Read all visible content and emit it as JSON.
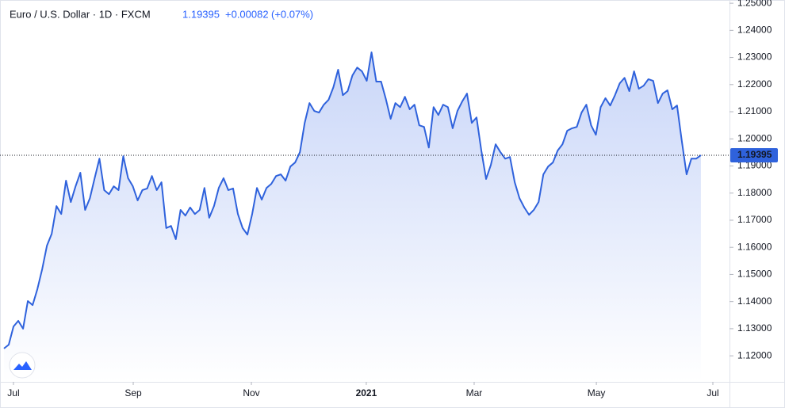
{
  "header": {
    "symbol": "Euro / U.S. Dollar · 1D · FXCM",
    "price": "1.19395",
    "change": "+0.00082",
    "change_pct": "(+0.07%)"
  },
  "chart_data": {
    "type": "area",
    "color": "#2f62dc",
    "grid": false,
    "values": [
      1.1227,
      1.1241,
      1.1308,
      1.1329,
      1.13,
      1.1402,
      1.1387,
      1.1446,
      1.1519,
      1.1606,
      1.165,
      1.1752,
      1.1723,
      1.1846,
      1.1767,
      1.1825,
      1.1875,
      1.1738,
      1.1781,
      1.1855,
      1.1927,
      1.1811,
      1.1796,
      1.1825,
      1.1811,
      1.1936,
      1.1855,
      1.1825,
      1.1773,
      1.1811,
      1.1817,
      1.1863,
      1.1811,
      1.184,
      1.1671,
      1.1679,
      1.163,
      1.1738,
      1.1717,
      1.1747,
      1.1723,
      1.1738,
      1.1819,
      1.1709,
      1.1752,
      1.1819,
      1.1855,
      1.1811,
      1.1817,
      1.1723,
      1.1671,
      1.1647,
      1.1723,
      1.1819,
      1.1776,
      1.1819,
      1.1834,
      1.1863,
      1.1869,
      1.1846,
      1.1898,
      1.1913,
      1.1951,
      1.2059,
      1.2132,
      1.2103,
      1.2097,
      1.2126,
      1.2144,
      1.219,
      1.2255,
      1.2161,
      1.2176,
      1.2234,
      1.2263,
      1.2249,
      1.2214,
      1.2319,
      1.2211,
      1.2211,
      1.2147,
      1.2074,
      1.2132,
      1.2117,
      1.2155,
      1.2109,
      1.2126,
      1.205,
      1.2044,
      1.1968,
      1.2117,
      1.2088,
      1.2126,
      1.2117,
      1.2039,
      1.2103,
      1.2138,
      1.2167,
      1.2059,
      1.2079,
      1.1957,
      1.1852,
      1.1904,
      1.198,
      1.1951,
      1.1927,
      1.1933,
      1.184,
      1.1781,
      1.1747,
      1.172,
      1.1738,
      1.1767,
      1.1869,
      1.1898,
      1.1913,
      1.1957,
      1.198,
      1.203,
      1.2039,
      1.2044,
      1.2097,
      1.2126,
      1.205,
      1.2015,
      1.2117,
      1.215,
      1.2123,
      1.2161,
      1.2205,
      1.2225,
      1.2176,
      1.2249,
      1.2185,
      1.2196,
      1.222,
      1.2214,
      1.2132,
      1.2167,
      1.2179,
      1.2109,
      1.2123,
      1.1992,
      1.1869,
      1.1927,
      1.1927,
      1.19395
    ],
    "xlim": [
      -0.83,
      151.99
    ],
    "xticks": [
      {
        "value": 1.99,
        "label": "Jul"
      },
      {
        "value": 27.08,
        "label": "Sep"
      },
      {
        "value": 51.83,
        "label": "Nov"
      },
      {
        "value": 75.9,
        "label": "2021"
      },
      {
        "value": 98.5,
        "label": "Mar"
      },
      {
        "value": 124.1,
        "label": "May"
      },
      {
        "value": 148.5,
        "label": "Jul"
      }
    ],
    "ylim": [
      1.1104,
      1.2512
    ],
    "yticks": [
      {
        "value": 1.12,
        "label": "1.12000"
      },
      {
        "value": 1.13,
        "label": "1.13000"
      },
      {
        "value": 1.14,
        "label": "1.14000"
      },
      {
        "value": 1.15,
        "label": "1.15000"
      },
      {
        "value": 1.16,
        "label": "1.16000"
      },
      {
        "value": 1.17,
        "label": "1.17000"
      },
      {
        "value": 1.18,
        "label": "1.18000"
      },
      {
        "value": 1.19,
        "label": "1.19000"
      },
      {
        "value": 1.2,
        "label": "1.20000"
      },
      {
        "value": 1.21,
        "label": "1.21000"
      },
      {
        "value": 1.22,
        "label": "1.22000"
      },
      {
        "value": 1.23,
        "label": "1.23000"
      },
      {
        "value": 1.24,
        "label": "1.24000"
      },
      {
        "value": 1.25,
        "label": "1.25000"
      }
    ]
  }
}
